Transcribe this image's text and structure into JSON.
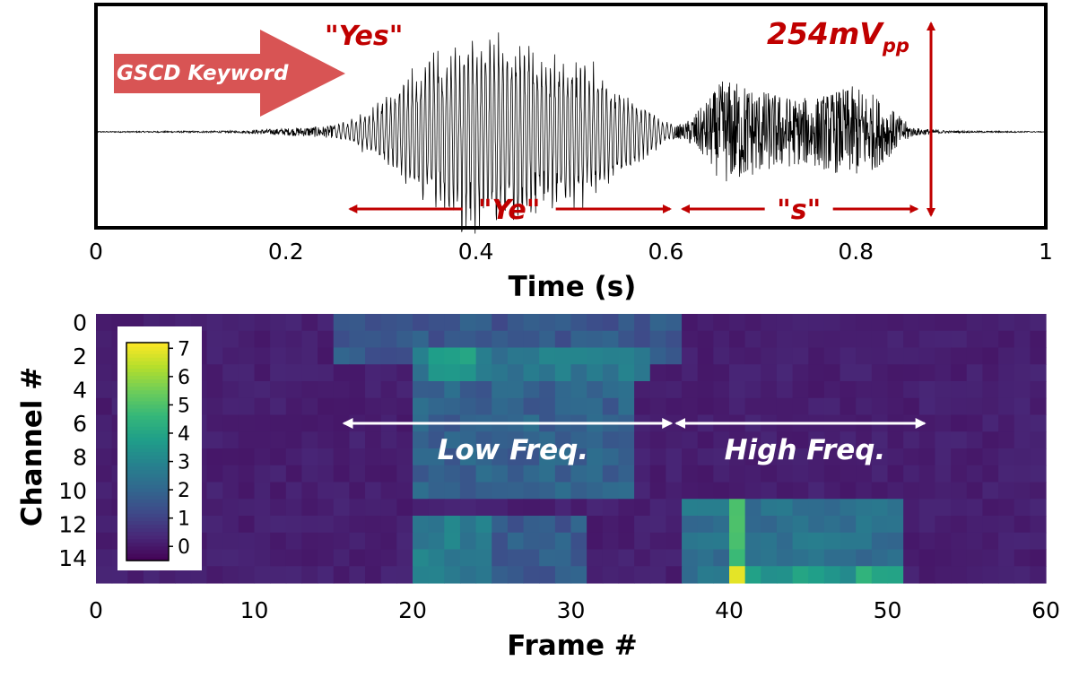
{
  "chart_data": [
    {
      "type": "line",
      "title": "",
      "xlabel": "Time (s)",
      "ylabel": "",
      "xlim": [
        0,
        1
      ],
      "xticks": [
        "0",
        "0.2",
        "0.4",
        "0.6",
        "0.8",
        "1"
      ],
      "series": [
        {
          "envelope_description": "speech waveform amplitude envelope",
          "x": [
            0.0,
            0.15,
            0.25,
            0.27,
            0.3,
            0.33,
            0.36,
            0.39,
            0.42,
            0.45,
            0.48,
            0.51,
            0.54,
            0.57,
            0.6,
            0.61,
            0.62,
            0.64,
            0.66,
            0.68,
            0.7,
            0.72,
            0.74,
            0.76,
            0.78,
            0.8,
            0.82,
            0.84,
            0.86,
            0.9,
            1.0
          ],
          "amplitude": [
            0.005,
            0.01,
            0.06,
            0.12,
            0.3,
            0.58,
            0.82,
            0.95,
            0.93,
            0.88,
            0.8,
            0.68,
            0.5,
            0.3,
            0.12,
            0.06,
            0.08,
            0.26,
            0.5,
            0.48,
            0.4,
            0.36,
            0.32,
            0.34,
            0.4,
            0.44,
            0.36,
            0.2,
            0.04,
            0.01,
            0.005
          ]
        }
      ],
      "annotations": {
        "word": "\"Yes\"",
        "keyword_label": "GSCD Keyword",
        "amplitude_label_main": "254mV",
        "amplitude_label_sub": "pp",
        "segment_ye": "\"Ye\"",
        "segment_s": "\"s\"",
        "segment_ye_range": [
          0.26,
          0.61
        ],
        "segment_s_range": [
          0.61,
          0.87
        ]
      },
      "accent_color": "#c00000"
    },
    {
      "type": "heatmap",
      "title": "",
      "xlabel": "Frame #",
      "ylabel": "Channel #",
      "xlim": [
        0,
        60
      ],
      "ylim": [
        16,
        0
      ],
      "xticks": [
        "0",
        "10",
        "20",
        "30",
        "40",
        "50",
        "60"
      ],
      "yticks": [
        "0",
        "2",
        "4",
        "6",
        "8",
        "10",
        "12",
        "14"
      ],
      "colormap": "viridis",
      "colorbar": {
        "range": [
          -0.5,
          7.2
        ],
        "ticks": [
          "7",
          "6",
          "5",
          "4",
          "3",
          "2",
          "1",
          "0"
        ],
        "placement": "top-left inside"
      },
      "frames": 60,
      "channels": 16,
      "regions": [
        {
          "frames": [
            15,
            37
          ],
          "channels": [
            0,
            3
          ],
          "value": 1.6
        },
        {
          "frames": [
            20,
            35
          ],
          "channels": [
            2,
            4
          ],
          "value": 2.6
        },
        {
          "frames": [
            21,
            24
          ],
          "channels": [
            2,
            6
          ],
          "value": 3.8
        },
        {
          "frames": [
            20,
            34
          ],
          "channels": [
            4,
            11
          ],
          "value": 1.9
        },
        {
          "frames": [
            20,
            25
          ],
          "channels": [
            12,
            16
          ],
          "value": 2.7
        },
        {
          "frames": [
            25,
            31
          ],
          "channels": [
            12,
            16
          ],
          "value": 1.7
        },
        {
          "frames": [
            37,
            51
          ],
          "channels": [
            11,
            16
          ],
          "value": 2.4
        },
        {
          "frames": [
            40,
            41
          ],
          "channels": [
            11,
            16
          ],
          "value": 4.6
        },
        {
          "frames": [
            40,
            41
          ],
          "channels": [
            15,
            16
          ],
          "value": 7.0
        },
        {
          "frames": [
            41,
            51
          ],
          "channels": [
            15,
            16
          ],
          "value": 3.6
        },
        {
          "frames": [
            48,
            49
          ],
          "channels": [
            15,
            16
          ],
          "value": 4.5
        }
      ],
      "annotations": {
        "low_freq_label": "Low Freq.",
        "high_freq_label": "High Freq.",
        "low_freq_range": [
          15.5,
          36.5
        ],
        "high_freq_range": [
          36.5,
          52.5
        ]
      }
    }
  ]
}
